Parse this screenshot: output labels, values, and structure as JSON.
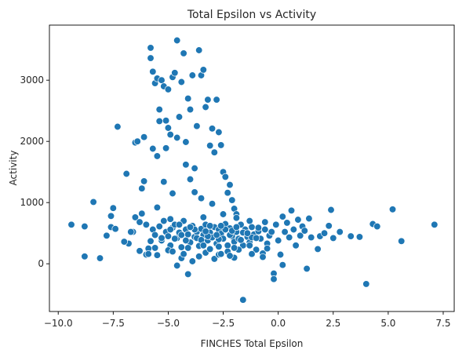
{
  "chart_data": {
    "type": "scatter",
    "title": "Total Epsilon vs Activity",
    "xlabel": "FINCHES Total Epsilon",
    "ylabel": "Activity",
    "xlim": [
      -10.4,
      8.0
    ],
    "ylim": [
      -780,
      3900
    ],
    "xticks": [
      -10.0,
      -7.5,
      -5.0,
      -2.5,
      0.0,
      2.5,
      5.0,
      7.5
    ],
    "xtick_labels": [
      "−10.0",
      "−7.5",
      "−5.0",
      "−2.5",
      "0.0",
      "2.5",
      "5.0",
      "7.5"
    ],
    "yticks": [
      0,
      1000,
      2000,
      3000
    ],
    "ytick_labels": [
      "0",
      "1000",
      "2000",
      "3000"
    ],
    "grid": false,
    "point_color": "#1f77b4",
    "points": [
      [
        -9.4,
        640
      ],
      [
        -8.8,
        610
      ],
      [
        -8.8,
        120
      ],
      [
        -8.4,
        1010
      ],
      [
        -8.1,
        90
      ],
      [
        -7.8,
        460
      ],
      [
        -7.6,
        600
      ],
      [
        -7.6,
        780
      ],
      [
        -7.5,
        910
      ],
      [
        -7.4,
        570
      ],
      [
        -7.3,
        2240
      ],
      [
        -6.9,
        1470
      ],
      [
        -6.8,
        330
      ],
      [
        -6.6,
        520
      ],
      [
        -6.5,
        760
      ],
      [
        -6.5,
        1980
      ],
      [
        -6.4,
        2000
      ],
      [
        -6.3,
        210
      ],
      [
        -6.2,
        1230
      ],
      [
        -6.1,
        1350
      ],
      [
        -6.1,
        2070
      ],
      [
        -6.0,
        150
      ],
      [
        -5.9,
        250
      ],
      [
        -5.8,
        3360
      ],
      [
        -5.8,
        3530
      ],
      [
        -5.7,
        3140
      ],
      [
        -5.7,
        1880
      ],
      [
        -5.6,
        2950
      ],
      [
        -5.5,
        3030
      ],
      [
        -5.5,
        920
      ],
      [
        -5.4,
        2520
      ],
      [
        -5.4,
        2330
      ],
      [
        -5.3,
        3000
      ],
      [
        -5.2,
        2900
      ],
      [
        -5.1,
        2340
      ],
      [
        -5.1,
        1890
      ],
      [
        -5.0,
        2220
      ],
      [
        -5.0,
        2850
      ],
      [
        -4.9,
        2110
      ],
      [
        -4.8,
        3050
      ],
      [
        -4.7,
        3120
      ],
      [
        -4.6,
        2060
      ],
      [
        -4.6,
        3650
      ],
      [
        -4.5,
        2400
      ],
      [
        -4.4,
        2970
      ],
      [
        -4.3,
        3440
      ],
      [
        -4.2,
        1990
      ],
      [
        -4.1,
        2700
      ],
      [
        -4.0,
        2520
      ],
      [
        -3.9,
        3080
      ],
      [
        -3.8,
        1560
      ],
      [
        -3.7,
        2250
      ],
      [
        -3.6,
        3490
      ],
      [
        -3.5,
        3080
      ],
      [
        -3.4,
        3170
      ],
      [
        -3.3,
        2560
      ],
      [
        -3.2,
        2680
      ],
      [
        -3.1,
        1930
      ],
      [
        -3.0,
        2210
      ],
      [
        -2.9,
        1820
      ],
      [
        -2.8,
        2680
      ],
      [
        -2.7,
        2150
      ],
      [
        -2.6,
        1940
      ],
      [
        -2.5,
        1500
      ],
      [
        -2.4,
        1420
      ],
      [
        -2.3,
        1160
      ],
      [
        -2.2,
        1290
      ],
      [
        -2.1,
        1040
      ],
      [
        -2.0,
        900
      ],
      [
        -1.9,
        810
      ],
      [
        -4.0,
        1380
      ],
      [
        -4.2,
        1620
      ],
      [
        -3.8,
        1170
      ],
      [
        -5.5,
        1760
      ],
      [
        -5.2,
        1340
      ],
      [
        -4.8,
        1150
      ],
      [
        -3.5,
        1070
      ],
      [
        -3.0,
        980
      ],
      [
        -6.2,
        820
      ],
      [
        -6.0,
        640
      ],
      [
        -5.7,
        560
      ],
      [
        -5.6,
        470
      ],
      [
        -5.4,
        610
      ],
      [
        -5.3,
        380
      ],
      [
        -5.2,
        700
      ],
      [
        -5.1,
        520
      ],
      [
        -5.0,
        450
      ],
      [
        -4.9,
        300
      ],
      [
        -4.8,
        590
      ],
      [
        -4.7,
        640
      ],
      [
        -4.6,
        420
      ],
      [
        -4.5,
        510
      ],
      [
        -4.4,
        270
      ],
      [
        -4.3,
        700
      ],
      [
        -4.2,
        560
      ],
      [
        -4.1,
        480
      ],
      [
        -4.0,
        350
      ],
      [
        -3.9,
        620
      ],
      [
        -3.8,
        440
      ],
      [
        -3.7,
        520
      ],
      [
        -3.6,
        290
      ],
      [
        -3.5,
        570
      ],
      [
        -3.4,
        470
      ],
      [
        -3.3,
        640
      ],
      [
        -3.2,
        380
      ],
      [
        -3.1,
        510
      ],
      [
        -3.0,
        430
      ],
      [
        -2.9,
        600
      ],
      [
        -2.8,
        330
      ],
      [
        -2.7,
        560
      ],
      [
        -2.6,
        490
      ],
      [
        -2.5,
        410
      ],
      [
        -2.4,
        650
      ],
      [
        -2.3,
        300
      ],
      [
        -2.2,
        580
      ],
      [
        -2.1,
        450
      ],
      [
        -2.0,
        360
      ],
      [
        -1.9,
        520
      ],
      [
        -1.8,
        410
      ],
      [
        -1.7,
        640
      ],
      [
        -1.6,
        300
      ],
      [
        -1.5,
        560
      ],
      [
        -1.4,
        440
      ],
      [
        -1.3,
        350
      ],
      [
        -1.2,
        600
      ],
      [
        -1.1,
        480
      ],
      [
        -1.0,
        230
      ],
      [
        -0.9,
        530
      ],
      [
        -0.8,
        410
      ],
      [
        -0.7,
        170
      ],
      [
        -0.6,
        560
      ],
      [
        -0.5,
        330
      ],
      [
        -0.4,
        460
      ],
      [
        -0.3,
        520
      ],
      [
        -0.2,
        -160
      ],
      [
        -0.2,
        -250
      ],
      [
        -0.1,
        640
      ],
      [
        0.0,
        380
      ],
      [
        0.1,
        150
      ],
      [
        0.2,
        -20
      ],
      [
        0.3,
        520
      ],
      [
        0.4,
        670
      ],
      [
        0.5,
        430
      ],
      [
        0.6,
        870
      ],
      [
        0.7,
        560
      ],
      [
        0.8,
        300
      ],
      [
        0.9,
        720
      ],
      [
        1.0,
        460
      ],
      [
        1.1,
        610
      ],
      [
        1.2,
        540
      ],
      [
        1.3,
        -80
      ],
      [
        1.4,
        740
      ],
      [
        1.5,
        430
      ],
      [
        1.8,
        240
      ],
      [
        1.9,
        450
      ],
      [
        2.1,
        500
      ],
      [
        2.3,
        620
      ],
      [
        2.4,
        880
      ],
      [
        2.5,
        420
      ],
      [
        2.8,
        520
      ],
      [
        3.3,
        450
      ],
      [
        3.7,
        440
      ],
      [
        4.0,
        -330
      ],
      [
        4.3,
        650
      ],
      [
        4.5,
        610
      ],
      [
        5.2,
        890
      ],
      [
        5.6,
        370
      ],
      [
        7.1,
        640
      ],
      [
        -6.3,
        680
      ],
      [
        -5.9,
        160
      ],
      [
        -5.5,
        140
      ],
      [
        -4.4,
        90
      ],
      [
        -4.1,
        -170
      ],
      [
        -3.9,
        40
      ],
      [
        -4.6,
        -30
      ],
      [
        -3.6,
        120
      ],
      [
        -3.3,
        180
      ],
      [
        -2.9,
        80
      ],
      [
        -2.7,
        150
      ],
      [
        -2.3,
        200
      ],
      [
        -2.0,
        100
      ],
      [
        -1.6,
        -590
      ],
      [
        -1.2,
        160
      ],
      [
        -0.7,
        110
      ],
      [
        -5.0,
        220
      ],
      [
        -4.3,
        160
      ],
      [
        -3.1,
        240
      ],
      [
        -2.6,
        160
      ],
      [
        -2.2,
        130
      ],
      [
        -1.8,
        230
      ],
      [
        -6.7,
        520
      ],
      [
        -7.0,
        360
      ],
      [
        -5.8,
        370
      ],
      [
        -4.9,
        730
      ],
      [
        -3.4,
        760
      ],
      [
        -2.5,
        810
      ],
      [
        -1.9,
        750
      ],
      [
        -1.3,
        700
      ],
      [
        -0.6,
        680
      ],
      [
        0.2,
        770
      ],
      [
        -4.7,
        410
      ],
      [
        -4.2,
        380
      ],
      [
        -3.7,
        420
      ],
      [
        -3.2,
        450
      ],
      [
        -2.7,
        400
      ],
      [
        -2.2,
        470
      ],
      [
        -1.7,
        390
      ],
      [
        -1.2,
        430
      ],
      [
        -4.5,
        640
      ],
      [
        -3.8,
        560
      ],
      [
        -3.1,
        620
      ],
      [
        -2.4,
        560
      ],
      [
        -1.6,
        510
      ],
      [
        -0.9,
        590
      ],
      [
        -5.3,
        420
      ],
      [
        -4.4,
        470
      ],
      [
        -3.5,
        390
      ],
      [
        -2.8,
        470
      ],
      [
        -2.1,
        540
      ],
      [
        -1.4,
        500
      ],
      [
        -4.9,
        560
      ],
      [
        -4.0,
        600
      ],
      [
        -3.3,
        530
      ],
      [
        -2.6,
        620
      ],
      [
        -1.9,
        600
      ],
      [
        -1.0,
        420
      ],
      [
        -5.6,
        260
      ],
      [
        -4.8,
        200
      ],
      [
        -4.1,
        260
      ],
      [
        -3.4,
        300
      ],
      [
        -2.7,
        280
      ],
      [
        -2.0,
        260
      ],
      [
        -1.3,
        300
      ],
      [
        -0.5,
        250
      ]
    ]
  }
}
